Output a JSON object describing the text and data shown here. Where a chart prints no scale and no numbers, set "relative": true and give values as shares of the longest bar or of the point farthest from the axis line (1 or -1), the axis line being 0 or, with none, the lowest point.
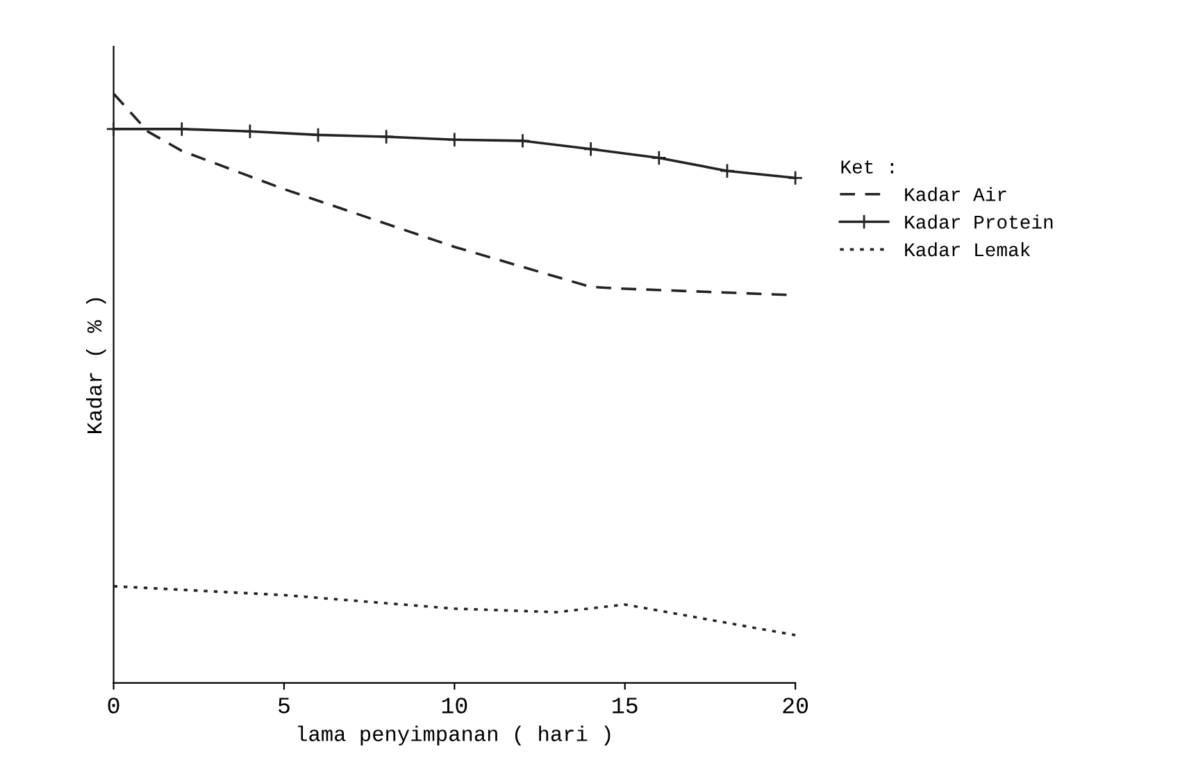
{
  "chart_data": {
    "type": "line",
    "relative": true,
    "xlabel": "lama penyimpanan ( hari )",
    "ylabel": "Kadar ( % )",
    "legend_title": "Ket :",
    "legend": "right",
    "grid": false,
    "xlim": [
      0,
      20
    ],
    "xticks": [
      0,
      5,
      10,
      15,
      20
    ],
    "series": [
      {
        "name": "Kadar Air",
        "color": "#222222",
        "line_style": "dashed",
        "marker": "none",
        "x": [
          0,
          1,
          2,
          5,
          10,
          14,
          15,
          20
        ],
        "values": [
          1.0,
          0.936,
          0.903,
          0.838,
          0.74,
          0.672,
          0.669,
          0.658
        ]
      },
      {
        "name": "Kadar Protein",
        "color": "#222222",
        "line_style": "solid",
        "marker": "cross",
        "x": [
          0,
          2,
          4,
          6,
          8,
          10,
          12,
          14,
          16,
          18,
          20
        ],
        "values": [
          0.94,
          0.94,
          0.936,
          0.93,
          0.927,
          0.922,
          0.92,
          0.906,
          0.891,
          0.869,
          0.857
        ]
      },
      {
        "name": "Kadar Lemak",
        "color": "#222222",
        "line_style": "dotted",
        "marker": "none",
        "x": [
          0,
          5,
          10,
          13,
          15,
          20
        ],
        "values": [
          0.164,
          0.149,
          0.126,
          0.12,
          0.133,
          0.081
        ]
      }
    ]
  }
}
